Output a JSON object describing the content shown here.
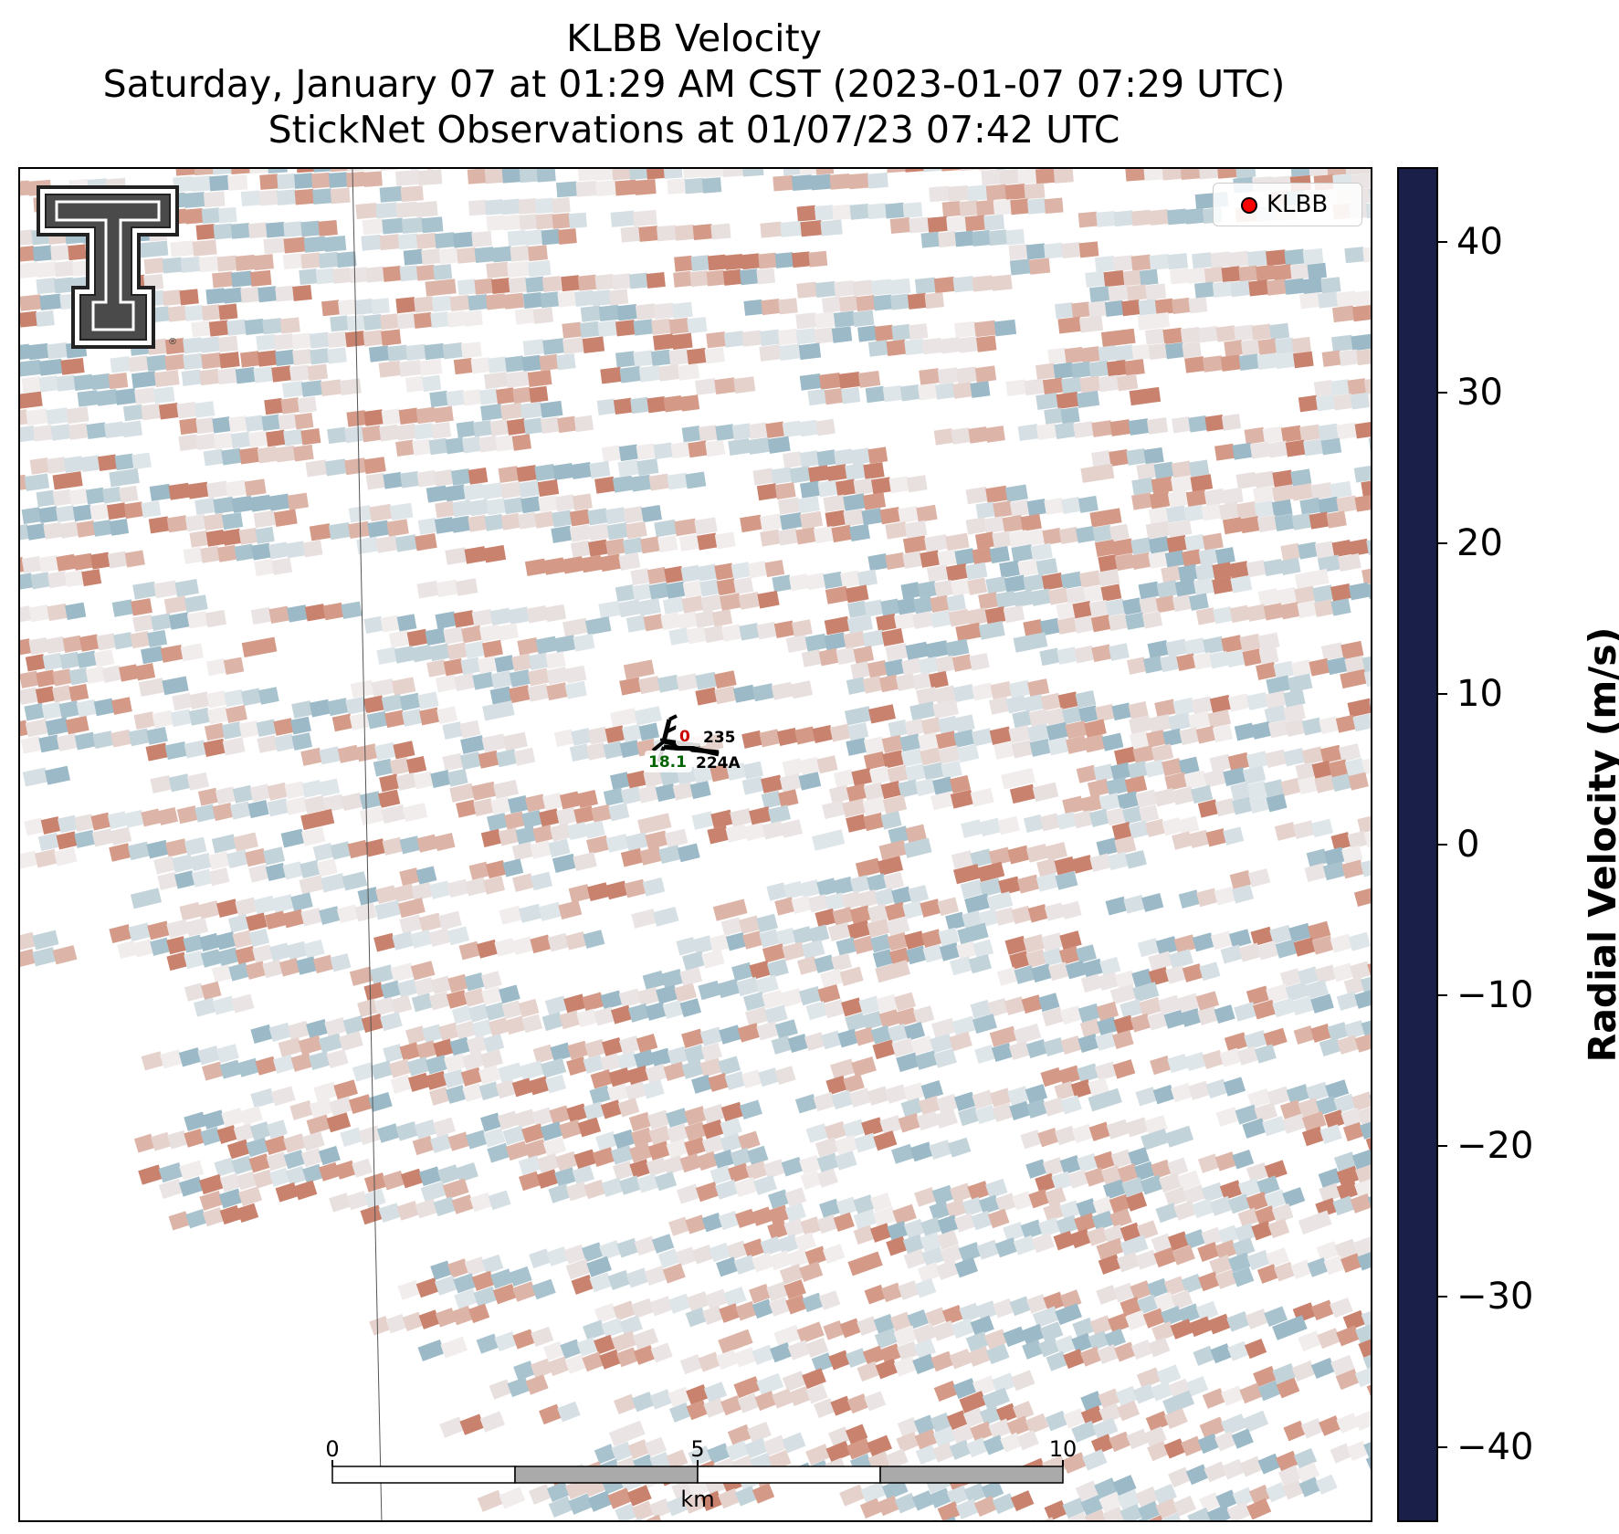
{
  "title": {
    "line1": "KLBB Velocity",
    "line2": "Saturday, January 07 at 01:29 AM CST (2023-01-07 07:29 UTC)",
    "line3": "StickNet Observations at 01/07/23 07:42 UTC"
  },
  "legend": {
    "label": "KLBB",
    "marker_color": "#ff0000"
  },
  "colorbar": {
    "label": "Radial Velocity (m/s)",
    "min": -45,
    "max": 45,
    "ticks": [
      "40",
      "30",
      "20",
      "10",
      "0",
      "−10",
      "−20",
      "−30",
      "−40"
    ],
    "tick_values": [
      40,
      30,
      20,
      10,
      0,
      -10,
      -20,
      -30,
      -40
    ],
    "colormap": "balance"
  },
  "stations": [
    {
      "id": "235",
      "value": "0",
      "value_color": "#cc0000"
    },
    {
      "id": "224A",
      "value": "18.1",
      "value_color": "#006400"
    }
  ],
  "scalebar": {
    "ticks": [
      "0",
      "5",
      "10"
    ],
    "unit": "km"
  },
  "logo": {
    "name": "Texas Tech Double T"
  }
}
